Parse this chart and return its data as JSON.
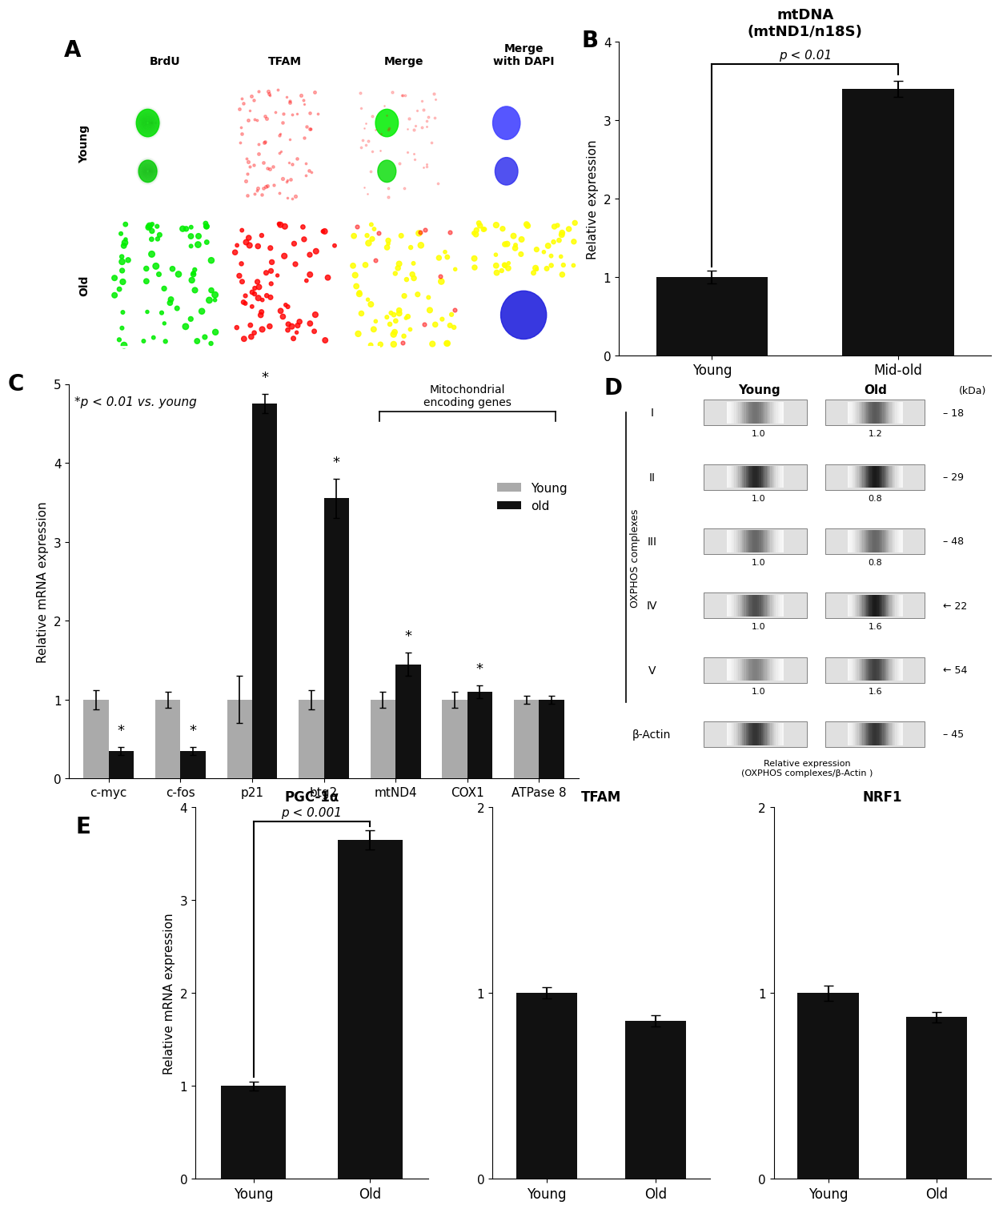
{
  "panel_B": {
    "title": "mtDNA\n(mtND1/n18S)",
    "categories": [
      "Young",
      "Mid-old"
    ],
    "values": [
      1.0,
      3.4
    ],
    "errors": [
      0.08,
      0.1
    ],
    "ylabel": "Relative expression",
    "ylim": [
      0,
      4
    ],
    "yticks": [
      0,
      1,
      2,
      3,
      4
    ],
    "p_text": "p < 0.01",
    "bar_color": "#111111"
  },
  "panel_C": {
    "categories": [
      "c-myc",
      "c-fos",
      "p21",
      "btg2",
      "mtND4",
      "COX1",
      "ATPase 8"
    ],
    "young_values": [
      1.0,
      1.0,
      1.0,
      1.0,
      1.0,
      1.0,
      1.0
    ],
    "old_values": [
      0.35,
      0.35,
      4.75,
      3.55,
      1.45,
      1.1,
      1.0
    ],
    "young_errors": [
      0.12,
      0.1,
      0.3,
      0.12,
      0.1,
      0.1,
      0.05
    ],
    "old_errors": [
      0.05,
      0.05,
      0.12,
      0.25,
      0.15,
      0.08,
      0.05
    ],
    "ylabel": "Relative mRNA expression",
    "ylim": [
      0,
      5
    ],
    "yticks": [
      0,
      1,
      2,
      3,
      4,
      5
    ],
    "annotation_text": "*p < 0.01 vs. young",
    "mitochondrial_label": "Mitochondrial\nencoding genes",
    "legend_young": "Young",
    "legend_old": "old",
    "young_color": "#aaaaaa",
    "old_color": "#111111"
  },
  "panel_D": {
    "header_young": "Young",
    "header_old": "Old",
    "kda_label": "(kDa)",
    "oxphos_label": "OXPHOS complexes",
    "bands": [
      {
        "label": "I",
        "kda": "18",
        "young_val": "1.0",
        "old_val": "1.2",
        "arrow": false,
        "young_dark": 0.55,
        "old_dark": 0.65
      },
      {
        "label": "II",
        "kda": "29",
        "young_val": "1.0",
        "old_val": "0.8",
        "arrow": false,
        "young_dark": 0.85,
        "old_dark": 0.9
      },
      {
        "label": "III",
        "kda": "48",
        "young_val": "1.0",
        "old_val": "0.8",
        "arrow": false,
        "young_dark": 0.6,
        "old_dark": 0.6
      },
      {
        "label": "IV",
        "kda": "22",
        "young_val": "1.0",
        "old_val": "1.6",
        "arrow": true,
        "young_dark": 0.7,
        "old_dark": 0.9
      },
      {
        "label": "V",
        "kda": "54",
        "young_val": "1.0",
        "old_val": "1.6",
        "arrow": true,
        "young_dark": 0.5,
        "old_dark": 0.75
      },
      {
        "label": "β-Actin",
        "kda": "45",
        "young_val": "",
        "old_val": "",
        "arrow": false,
        "young_dark": 0.8,
        "old_dark": 0.8
      }
    ],
    "footer": "Relative expression\n(OXPHOS complexes/β-Actin )"
  },
  "panel_E": {
    "subplots": [
      {
        "title": "PGC-1α",
        "categories": [
          "Young",
          "Old"
        ],
        "values": [
          1.0,
          3.65
        ],
        "errors": [
          0.05,
          0.1
        ],
        "ylim": [
          0,
          4
        ],
        "yticks": [
          0,
          1,
          2,
          3,
          4
        ],
        "p_text": "p < 0.001",
        "show_p": true
      },
      {
        "title": "TFAM",
        "categories": [
          "Young",
          "Old"
        ],
        "values": [
          1.0,
          0.85
        ],
        "errors": [
          0.03,
          0.03
        ],
        "ylim": [
          0,
          2
        ],
        "yticks": [
          0,
          1,
          2
        ],
        "p_text": "",
        "show_p": false
      },
      {
        "title": "NRF1",
        "categories": [
          "Young",
          "Old"
        ],
        "values": [
          1.0,
          0.87
        ],
        "errors": [
          0.04,
          0.03
        ],
        "ylim": [
          0,
          2
        ],
        "yticks": [
          0,
          1,
          2
        ],
        "p_text": "",
        "show_p": false
      }
    ],
    "ylabel": "Relative mRNA expression",
    "bar_color": "#111111"
  },
  "bg_color": "#ffffff"
}
